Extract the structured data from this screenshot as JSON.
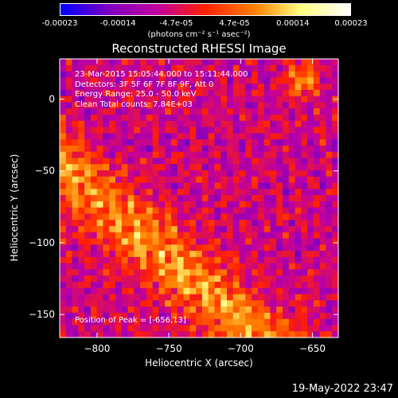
{
  "colorbar": {
    "ticks": [
      "-0.00023",
      "-0.00014",
      "-4.7e-05",
      "4.7e-05",
      "0.00014",
      "0.00023"
    ],
    "units_label": "(photons cm⁻² s⁻¹ asec⁻²)",
    "colormap": [
      "#0000ff",
      "#8000c0",
      "#c000a0",
      "#ff2000",
      "#ff8000",
      "#ffff80",
      "#ffffff"
    ]
  },
  "header": {
    "title": "Reconstructed RHESSI Image"
  },
  "annotations": {
    "time_range": "23-Mar-2015 15:05:44.000 to 15:11:44.000",
    "detectors": "Detectors: 3F 5F 6F 7F 8F 9F, Att 0",
    "energy": "Energy Range: 25.0 - 50.0 keV",
    "clean": "Clean    Total counts: 7.84E+03",
    "peak": "Position of Peak = [-656,13]"
  },
  "footer": {
    "timestamp": "19-May-2022 23:47"
  },
  "chart_data": {
    "type": "heatmap",
    "title": "Reconstructed RHESSI Image",
    "xlabel": "Heliocentric X (arcsec)",
    "ylabel": "Heliocentric Y (arcsec)",
    "xlim": [
      -826,
      -632
    ],
    "ylim": [
      -166,
      28
    ],
    "x_ticks": [
      -800,
      -750,
      -700,
      -650
    ],
    "y_ticks": [
      0,
      -50,
      -100,
      -150
    ],
    "x_tick_labels": [
      "−800",
      "−750",
      "−700",
      "−650"
    ],
    "y_tick_labels": [
      "0",
      "−50",
      "−100",
      "−150"
    ],
    "peak_position": [
      -656,
      13
    ],
    "colorbar_range": [
      -0.00023,
      0.00023
    ],
    "grid": false
  }
}
